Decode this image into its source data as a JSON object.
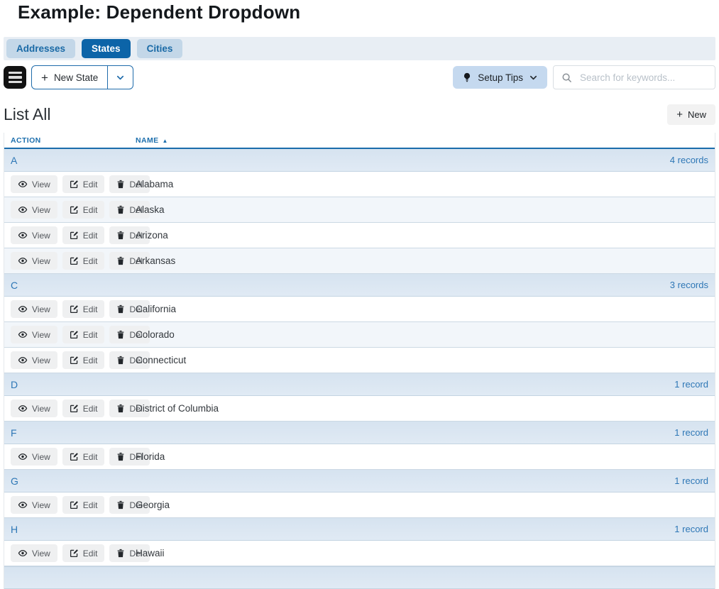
{
  "page": {
    "title": "Example: Dependent Dropdown"
  },
  "tabs": [
    {
      "label": "Addresses",
      "active": false
    },
    {
      "label": "States",
      "active": true
    },
    {
      "label": "Cities",
      "active": false
    }
  ],
  "toolbar": {
    "new_state_label": "New State",
    "setup_tips_label": "Setup Tips",
    "search_placeholder": "Search for keywords..."
  },
  "list": {
    "heading": "List All",
    "new_button_label": "New",
    "columns": [
      "ACTION",
      "NAME"
    ],
    "sort_arrow": "▲",
    "row_buttons": {
      "view": "View",
      "edit": "Edit",
      "del": "Del"
    },
    "groups": [
      {
        "letter": "A",
        "count_label": "4 records",
        "rows": [
          "Alabama",
          "Alaska",
          "Arizona",
          "Arkansas"
        ]
      },
      {
        "letter": "C",
        "count_label": "3 records",
        "rows": [
          "California",
          "Colorado",
          "Connecticut"
        ]
      },
      {
        "letter": "D",
        "count_label": "1 record",
        "rows": [
          "District of Columbia"
        ]
      },
      {
        "letter": "F",
        "count_label": "1 record",
        "rows": [
          "Florida"
        ]
      },
      {
        "letter": "G",
        "count_label": "1 record",
        "rows": [
          "Georgia"
        ]
      },
      {
        "letter": "H",
        "count_label": "1 record",
        "rows": [
          "Hawaii"
        ]
      }
    ]
  },
  "icons": {
    "menu": "hamburger-icon",
    "plus": "+",
    "chevron_down": "chevron-down-icon",
    "lightbulb": "lightbulb-icon",
    "search": "search-icon",
    "view": "eye-icon",
    "edit": "pencil-square-icon",
    "del": "trash-icon",
    "sort": "sort-asc-icon"
  },
  "colors": {
    "accent_blue": "#0c64a8",
    "link_blue": "#2e77b6",
    "column_header_blue": "#1d6fad",
    "tab_inactive_bg": "#c3d7e8",
    "group_header_bg": "#d6e3f0",
    "alt_row_bg": "#f2f6fa"
  }
}
